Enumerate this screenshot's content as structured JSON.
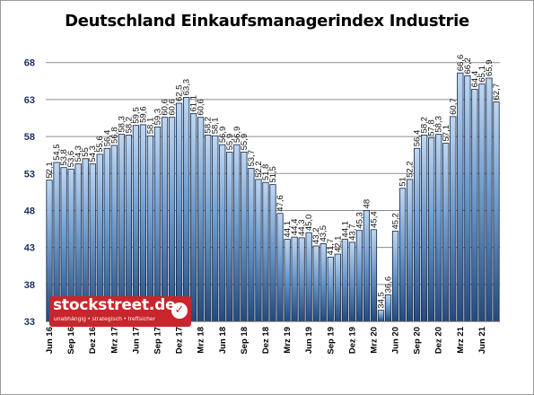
{
  "chart_data": {
    "type": "bar",
    "title": "Deutschland Einkaufsmanagerindex Industrie",
    "xlabel": "",
    "ylabel": "",
    "ylim": [
      33,
      71
    ],
    "yticks": [
      33,
      38,
      43,
      48,
      53,
      58,
      63,
      68
    ],
    "grid": true,
    "legend": "none",
    "colors": {
      "bar_top": "#bfd7f2",
      "bar_bottom": "#24497d",
      "bar_stroke": "#0e2446",
      "gridline": "#8c8c8c",
      "axis_tick": "#1f2f66"
    },
    "x_tick_labels": [
      "Jun 16",
      "Sep 16",
      "Dez 16",
      "Mrz 17",
      "Jun 17",
      "Sep 17",
      "Dez 17",
      "Mrz 18",
      "Jun 18",
      "Sep 18",
      "Dez 18",
      "Mrz 19",
      "Jun 19",
      "Sep 19",
      "Dez 19",
      "Mrz 20",
      "Jun 20",
      "Sep 20",
      "Dez 20",
      "Mrz 21",
      "Jun 21"
    ],
    "values": [
      52.1,
      54.5,
      53.8,
      53.6,
      54.3,
      55.0,
      54.3,
      55.6,
      56.4,
      56.8,
      58.3,
      58.2,
      59.5,
      59.6,
      58.1,
      59.3,
      60.6,
      60.6,
      62.5,
      63.3,
      61.1,
      60.6,
      58.2,
      58.1,
      56.9,
      55.9,
      56.9,
      55.9,
      53.7,
      52.2,
      51.8,
      51.5,
      47.6,
      44.1,
      44.4,
      44.3,
      45.0,
      43.2,
      43.5,
      41.7,
      42.1,
      44.1,
      43.7,
      45.3,
      48.0,
      45.4,
      34.5,
      36.6,
      45.2,
      51.0,
      52.2,
      56.4,
      58.2,
      57.8,
      58.3,
      57.1,
      60.7,
      66.6,
      66.2,
      64.4,
      65.1,
      65.9,
      62.7
    ],
    "value_labels": [
      "52,1",
      "54,5",
      "53,8",
      "53,6",
      "54,3",
      "55",
      "54,3",
      "55,6",
      "56,4",
      "56,8",
      "58,3",
      "58,2",
      "59,5",
      "59,6",
      "58,1",
      "59,3",
      "60,6",
      "60,6",
      "62,5",
      "63,3",
      "61,1",
      "60,6",
      "58,2",
      "58,1",
      "56,9",
      "55,9",
      "56,9",
      "55,9",
      "53,7",
      "52,2",
      "51,8",
      "51,5",
      "47,6",
      "44,1",
      "44,4",
      "44,3",
      "45,0",
      "43,2",
      "43,5",
      "41,7",
      "42,1",
      "44,1",
      "43,7",
      "45,3",
      "48",
      "45,4",
      "34,5",
      "36,6",
      "45,2",
      "51",
      "52,2",
      "56,4",
      "58,2",
      "57,8",
      "58,3",
      "57,1",
      "60,7",
      "66,6",
      "66,2",
      "64,4",
      "65,1",
      "65,9",
      "62,7"
    ]
  },
  "logo": {
    "name": "stockstreet.de",
    "tagline": "unabhängig • strategisch • treffsicher",
    "check_icon": "checkmark-icon"
  }
}
